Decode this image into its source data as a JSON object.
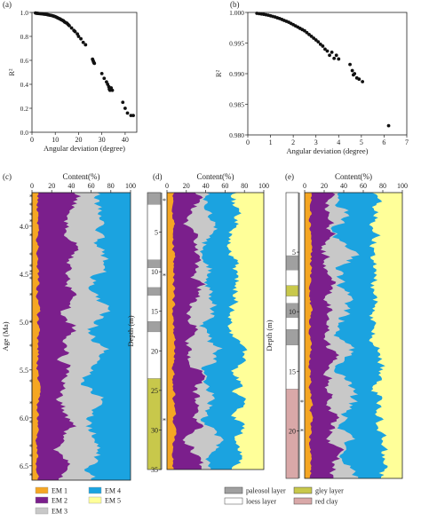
{
  "panel_labels": [
    "(a)",
    "(b)",
    "(c)",
    "(d)",
    "(e)"
  ],
  "colors": {
    "em1": "#f5a623",
    "em2": "#7b1f8c",
    "em3": "#c8c8c8",
    "em4": "#1ba3e0",
    "em5": "#ffff99",
    "paleosol": "#a0a0a0",
    "loess": "#ffffff",
    "gley": "#c8c84b",
    "red_clay": "#d9a8a8",
    "star": "#9b2d9b",
    "point": "#111111"
  },
  "legend": {
    "em_items": [
      {
        "key": "em1",
        "label": "EM 1"
      },
      {
        "key": "em2",
        "label": "EM 2"
      },
      {
        "key": "em3",
        "label": "EM 3"
      },
      {
        "key": "em4",
        "label": "EM 4"
      },
      {
        "key": "em5",
        "label": "EM 5"
      }
    ],
    "layer_items": [
      {
        "key": "paleosol",
        "label": "paleosol layer"
      },
      {
        "key": "loess",
        "label": "loess layer"
      },
      {
        "key": "gley",
        "label": "gley layer"
      },
      {
        "key": "red_clay",
        "label": "red clay"
      }
    ]
  },
  "chart_data": [
    {
      "panel": "(a)",
      "type": "scatter",
      "xlabel": "Angular  deviation (degree)",
      "ylabel": "R²",
      "xlim": [
        0,
        45
      ],
      "ylim": [
        0.0,
        1.0
      ],
      "xticks": [
        0,
        10,
        20,
        30,
        40
      ],
      "yticks": [
        0.0,
        0.2,
        0.4,
        0.6,
        0.8,
        1.0
      ],
      "ytick_labels": [
        "0.0",
        "0.2",
        "0.4",
        "0.6",
        "0.8",
        "1.0"
      ],
      "points": [
        [
          1.5,
          0.995
        ],
        [
          2.0,
          0.993
        ],
        [
          2.5,
          0.992
        ],
        [
          3.0,
          0.991
        ],
        [
          3.5,
          0.99
        ],
        [
          4.0,
          0.989
        ],
        [
          4.5,
          0.988
        ],
        [
          5.0,
          0.986
        ],
        [
          5.5,
          0.985
        ],
        [
          6.0,
          0.984
        ],
        [
          6.5,
          0.982
        ],
        [
          7.0,
          0.98
        ],
        [
          7.5,
          0.978
        ],
        [
          8.0,
          0.976
        ],
        [
          8.5,
          0.974
        ],
        [
          9.0,
          0.971
        ],
        [
          9.5,
          0.968
        ],
        [
          10.0,
          0.965
        ],
        [
          10.5,
          0.96
        ],
        [
          11.0,
          0.955
        ],
        [
          11.5,
          0.95
        ],
        [
          12.0,
          0.946
        ],
        [
          12.5,
          0.94
        ],
        [
          13.0,
          0.935
        ],
        [
          13.5,
          0.93
        ],
        [
          14.0,
          0.92
        ],
        [
          14.5,
          0.915
        ],
        [
          15.0,
          0.91
        ],
        [
          15.5,
          0.9
        ],
        [
          16.0,
          0.89
        ],
        [
          17.0,
          0.87
        ],
        [
          18.0,
          0.85
        ],
        [
          18.5,
          0.84
        ],
        [
          19.5,
          0.82
        ],
        [
          20.0,
          0.8
        ],
        [
          21.0,
          0.78
        ],
        [
          22.0,
          0.75
        ],
        [
          23.0,
          0.73
        ],
        [
          26.0,
          0.61
        ],
        [
          26.2,
          0.6
        ],
        [
          26.4,
          0.59
        ],
        [
          26.6,
          0.58
        ],
        [
          26.8,
          0.575
        ],
        [
          30.0,
          0.49
        ],
        [
          31.0,
          0.45
        ],
        [
          32.0,
          0.42
        ],
        [
          32.5,
          0.4
        ],
        [
          33.0,
          0.38
        ],
        [
          33.2,
          0.36
        ],
        [
          33.5,
          0.35
        ],
        [
          34.0,
          0.37
        ],
        [
          34.5,
          0.35
        ],
        [
          39.0,
          0.25
        ],
        [
          40.0,
          0.2
        ],
        [
          41.0,
          0.16
        ],
        [
          42.5,
          0.14
        ],
        [
          43.5,
          0.14
        ]
      ]
    },
    {
      "panel": "(b)",
      "type": "scatter",
      "xlabel": "Angular  deviation (degree)",
      "ylabel": "R²",
      "xlim": [
        0,
        7
      ],
      "ylim": [
        0.98,
        1.0
      ],
      "xticks": [
        0,
        1,
        2,
        3,
        4,
        5,
        6,
        7
      ],
      "yticks": [
        0.98,
        0.985,
        0.99,
        0.995,
        1.0
      ],
      "ytick_labels": [
        "0.980",
        "0.985",
        "0.990",
        "0.995",
        "1.000"
      ],
      "points": [
        [
          0.4,
          0.99985
        ],
        [
          0.5,
          0.9998
        ],
        [
          0.6,
          0.99975
        ],
        [
          0.7,
          0.9997
        ],
        [
          0.8,
          0.99962
        ],
        [
          0.9,
          0.99955
        ],
        [
          1.0,
          0.99945
        ],
        [
          1.1,
          0.99935
        ],
        [
          1.2,
          0.99925
        ],
        [
          1.3,
          0.99912
        ],
        [
          1.4,
          0.999
        ],
        [
          1.5,
          0.99885
        ],
        [
          1.6,
          0.9987
        ],
        [
          1.7,
          0.99855
        ],
        [
          1.8,
          0.9984
        ],
        [
          1.9,
          0.9982
        ],
        [
          2.0,
          0.998
        ],
        [
          2.1,
          0.9978
        ],
        [
          2.2,
          0.9976
        ],
        [
          2.3,
          0.9974
        ],
        [
          2.4,
          0.9972
        ],
        [
          2.5,
          0.997
        ],
        [
          2.6,
          0.9967
        ],
        [
          2.7,
          0.9964
        ],
        [
          2.8,
          0.9961
        ],
        [
          2.9,
          0.9958
        ],
        [
          3.0,
          0.9955
        ],
        [
          3.1,
          0.9952
        ],
        [
          3.2,
          0.9948
        ],
        [
          3.3,
          0.9945
        ],
        [
          3.4,
          0.994
        ],
        [
          3.5,
          0.9937
        ],
        [
          3.6,
          0.993
        ],
        [
          3.7,
          0.9935
        ],
        [
          3.8,
          0.9925
        ],
        [
          3.9,
          0.993
        ],
        [
          4.0,
          0.9924
        ],
        [
          4.5,
          0.9915
        ],
        [
          4.6,
          0.9905
        ],
        [
          4.65,
          0.9898
        ],
        [
          4.7,
          0.99
        ],
        [
          4.8,
          0.9893
        ],
        [
          4.9,
          0.9891
        ],
        [
          5.05,
          0.9887
        ],
        [
          6.2,
          0.9815
        ]
      ]
    },
    {
      "panel": "(c)",
      "type": "area",
      "title": "Content(%)",
      "ylabel": "Age (Ma)",
      "xlim": [
        0,
        100
      ],
      "xticks": [
        0,
        20,
        40,
        60,
        80,
        100
      ],
      "ylim": [
        3.65,
        6.65
      ],
      "yticks": [
        4.0,
        4.5,
        5.0,
        5.5,
        6.0,
        6.5
      ],
      "ytick_labels": [
        "4.0",
        "4.5",
        "5.0",
        "5.5",
        "6.0",
        "6.5"
      ],
      "stack_order": [
        "em1",
        "em2",
        "em3",
        "em4"
      ],
      "star_y": [
        3.69,
        3.78,
        3.88,
        3.95,
        4.1,
        4.3,
        4.42,
        4.48,
        4.55,
        4.72,
        5.0,
        5.25,
        5.62,
        5.85,
        6.05,
        6.3,
        6.4,
        6.6
      ]
    },
    {
      "panel": "(d)",
      "type": "area",
      "title": "Content(%)",
      "ylabel": "Depth (m)",
      "xlim": [
        0,
        100
      ],
      "xticks": [
        0,
        20,
        40,
        60,
        80,
        100
      ],
      "ylim": [
        0,
        35
      ],
      "yticks": [
        5,
        10,
        15,
        20,
        25,
        30,
        35
      ],
      "ytick_labels": [
        "5",
        "10",
        "15",
        "20",
        "25",
        "30",
        "35"
      ],
      "stack_order": [
        "em1",
        "em2",
        "em3",
        "em4",
        "em5"
      ],
      "star_y": [
        1.0,
        10.5,
        28.8
      ],
      "strata": [
        {
          "type": "paleosol",
          "top": 0,
          "bottom": 1.5
        },
        {
          "type": "loess",
          "top": 1.5,
          "bottom": 8.5
        },
        {
          "type": "paleosol",
          "top": 8.5,
          "bottom": 9.5
        },
        {
          "type": "loess",
          "top": 9.5,
          "bottom": 12
        },
        {
          "type": "paleosol",
          "top": 12,
          "bottom": 13
        },
        {
          "type": "loess",
          "top": 13,
          "bottom": 16.3
        },
        {
          "type": "paleosol",
          "top": 16.3,
          "bottom": 17.6
        },
        {
          "type": "loess",
          "top": 17.6,
          "bottom": 23.5
        },
        {
          "type": "gley",
          "top": 23.5,
          "bottom": 35
        }
      ]
    },
    {
      "panel": "(e)",
      "type": "area",
      "title": "Content(%)",
      "ylabel": "Depth (m)",
      "xlim": [
        0,
        100
      ],
      "xticks": [
        0,
        20,
        40,
        60,
        80,
        100
      ],
      "ylim": [
        0,
        24
      ],
      "yticks": [
        5,
        10,
        15,
        20
      ],
      "ytick_labels": [
        "5",
        "10",
        "15",
        "20"
      ],
      "stack_order": [
        "em1",
        "em2",
        "em3",
        "em4",
        "em5"
      ],
      "star_y": [
        17.6,
        20.0
      ],
      "strata": [
        {
          "type": "loess",
          "top": 0,
          "bottom": 5.3
        },
        {
          "type": "paleosol",
          "top": 5.3,
          "bottom": 6.5
        },
        {
          "type": "loess",
          "top": 6.5,
          "bottom": 7.8
        },
        {
          "type": "gley",
          "top": 7.8,
          "bottom": 8.7
        },
        {
          "type": "loess",
          "top": 8.7,
          "bottom": 9.3
        },
        {
          "type": "paleosol",
          "top": 9.3,
          "bottom": 10.5
        },
        {
          "type": "loess",
          "top": 10.5,
          "bottom": 11.5
        },
        {
          "type": "paleosol",
          "top": 11.5,
          "bottom": 12.8
        },
        {
          "type": "loess",
          "top": 12.8,
          "bottom": 16.5
        },
        {
          "type": "red_clay",
          "top": 16.5,
          "bottom": 24
        }
      ]
    }
  ]
}
